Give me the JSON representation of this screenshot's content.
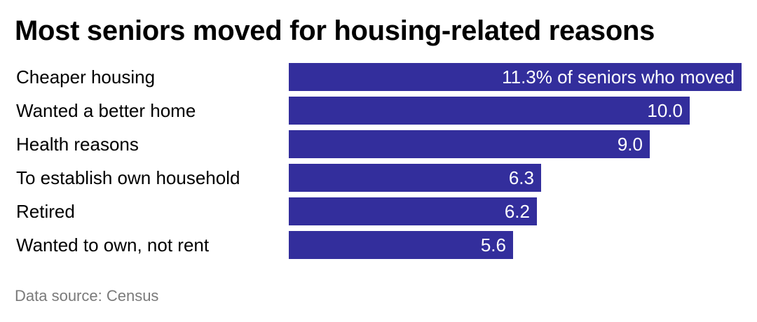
{
  "title": "Most seniors moved for housing-related reasons",
  "source": "Data source: Census",
  "colors": {
    "bar": "#332e9c",
    "bar_label": "#ffffff",
    "source": "#7a7a7a"
  },
  "chart_data": {
    "type": "bar",
    "orientation": "horizontal",
    "title": "Most seniors moved for housing-related reasons",
    "categories": [
      "Cheaper housing",
      "Wanted a better home",
      "Health reasons",
      "To establish own household",
      "Retired",
      "Wanted to own, not rent"
    ],
    "values": [
      11.3,
      10.0,
      9.0,
      6.3,
      6.2,
      5.6
    ],
    "value_labels": [
      "11.3% of seniors who moved",
      "10.0",
      "9.0",
      "6.3",
      "6.2",
      "5.6"
    ],
    "unit": "% of seniors who moved",
    "xlim": [
      0,
      11.3
    ],
    "grid": false,
    "legend": "none"
  }
}
